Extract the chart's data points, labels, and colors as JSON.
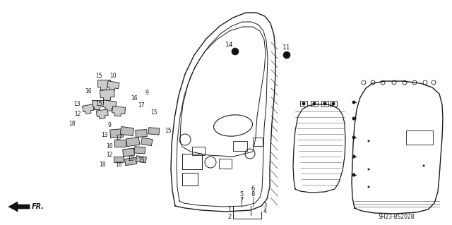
{
  "background_color": "#ffffff",
  "line_color": "#1a1a1a",
  "diagram_code": "SH23-BS2028"
}
